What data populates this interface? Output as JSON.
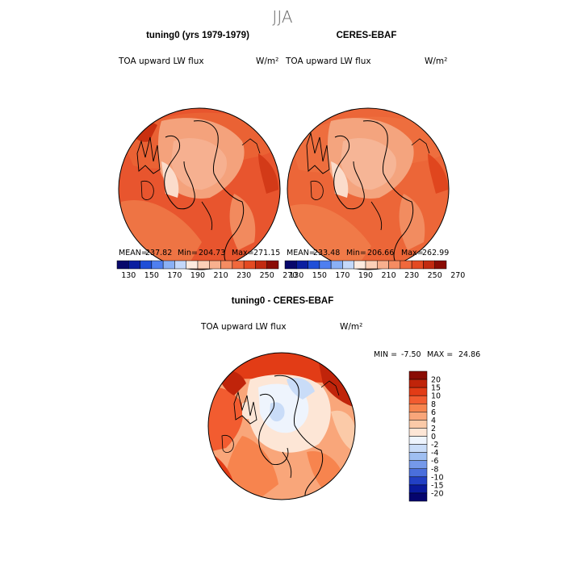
{
  "figure": {
    "season": "JJA"
  },
  "panels": [
    {
      "title": "tuning0 (yrs 1979-1979)",
      "variable": "TOA upward LW flux",
      "units": "W/m²",
      "mean_label": "MEAN=",
      "mean": "237.82",
      "min_label": "Min=",
      "min": "204.73",
      "max_label": "Max=",
      "max": "271.15"
    },
    {
      "title": "CERES-EBAF",
      "variable": "TOA upward LW flux",
      "units": "W/m²",
      "mean_label": "MEAN=",
      "mean": "233.48",
      "min_label": "Min=",
      "min": "206.66",
      "max_label": "Max=",
      "max": "262.99"
    }
  ],
  "top_colorbar": {
    "labels": [
      "130",
      "150",
      "170",
      "190",
      "210",
      "230",
      "250",
      "270"
    ],
    "colors": [
      "#08086b",
      "#0a1fa0",
      "#1f4fd8",
      "#4f7ff0",
      "#8ab0f5",
      "#c4d8fa",
      "#fdebe0",
      "#fbd0b8",
      "#f8b08e",
      "#f58c62",
      "#f0683c",
      "#e44a22",
      "#c22a10",
      "#8a0c04"
    ]
  },
  "difference": {
    "title": "tuning0 - CERES-EBAF",
    "variable": "TOA upward LW flux",
    "units": "W/m²",
    "min_label": "MIN =",
    "min": "-7.50",
    "max_label": "MAX =",
    "max": "24.86",
    "colorbar_labels": [
      "20",
      "15",
      "10",
      "8",
      "6",
      "4",
      "2",
      "0",
      "-2",
      "-4",
      "-6",
      "-8",
      "-10",
      "-15",
      "-20"
    ],
    "colorbar_colors": [
      "#8a0c04",
      "#c0240a",
      "#e23c16",
      "#f25c30",
      "#f7844e",
      "#f9a67a",
      "#fbcaa8",
      "#fde6d6",
      "#eef4fd",
      "#c9dcf8",
      "#9fbff2",
      "#7599ea",
      "#4a6fdc",
      "#2240c4",
      "#0a1a9c",
      "#05056e"
    ]
  }
}
